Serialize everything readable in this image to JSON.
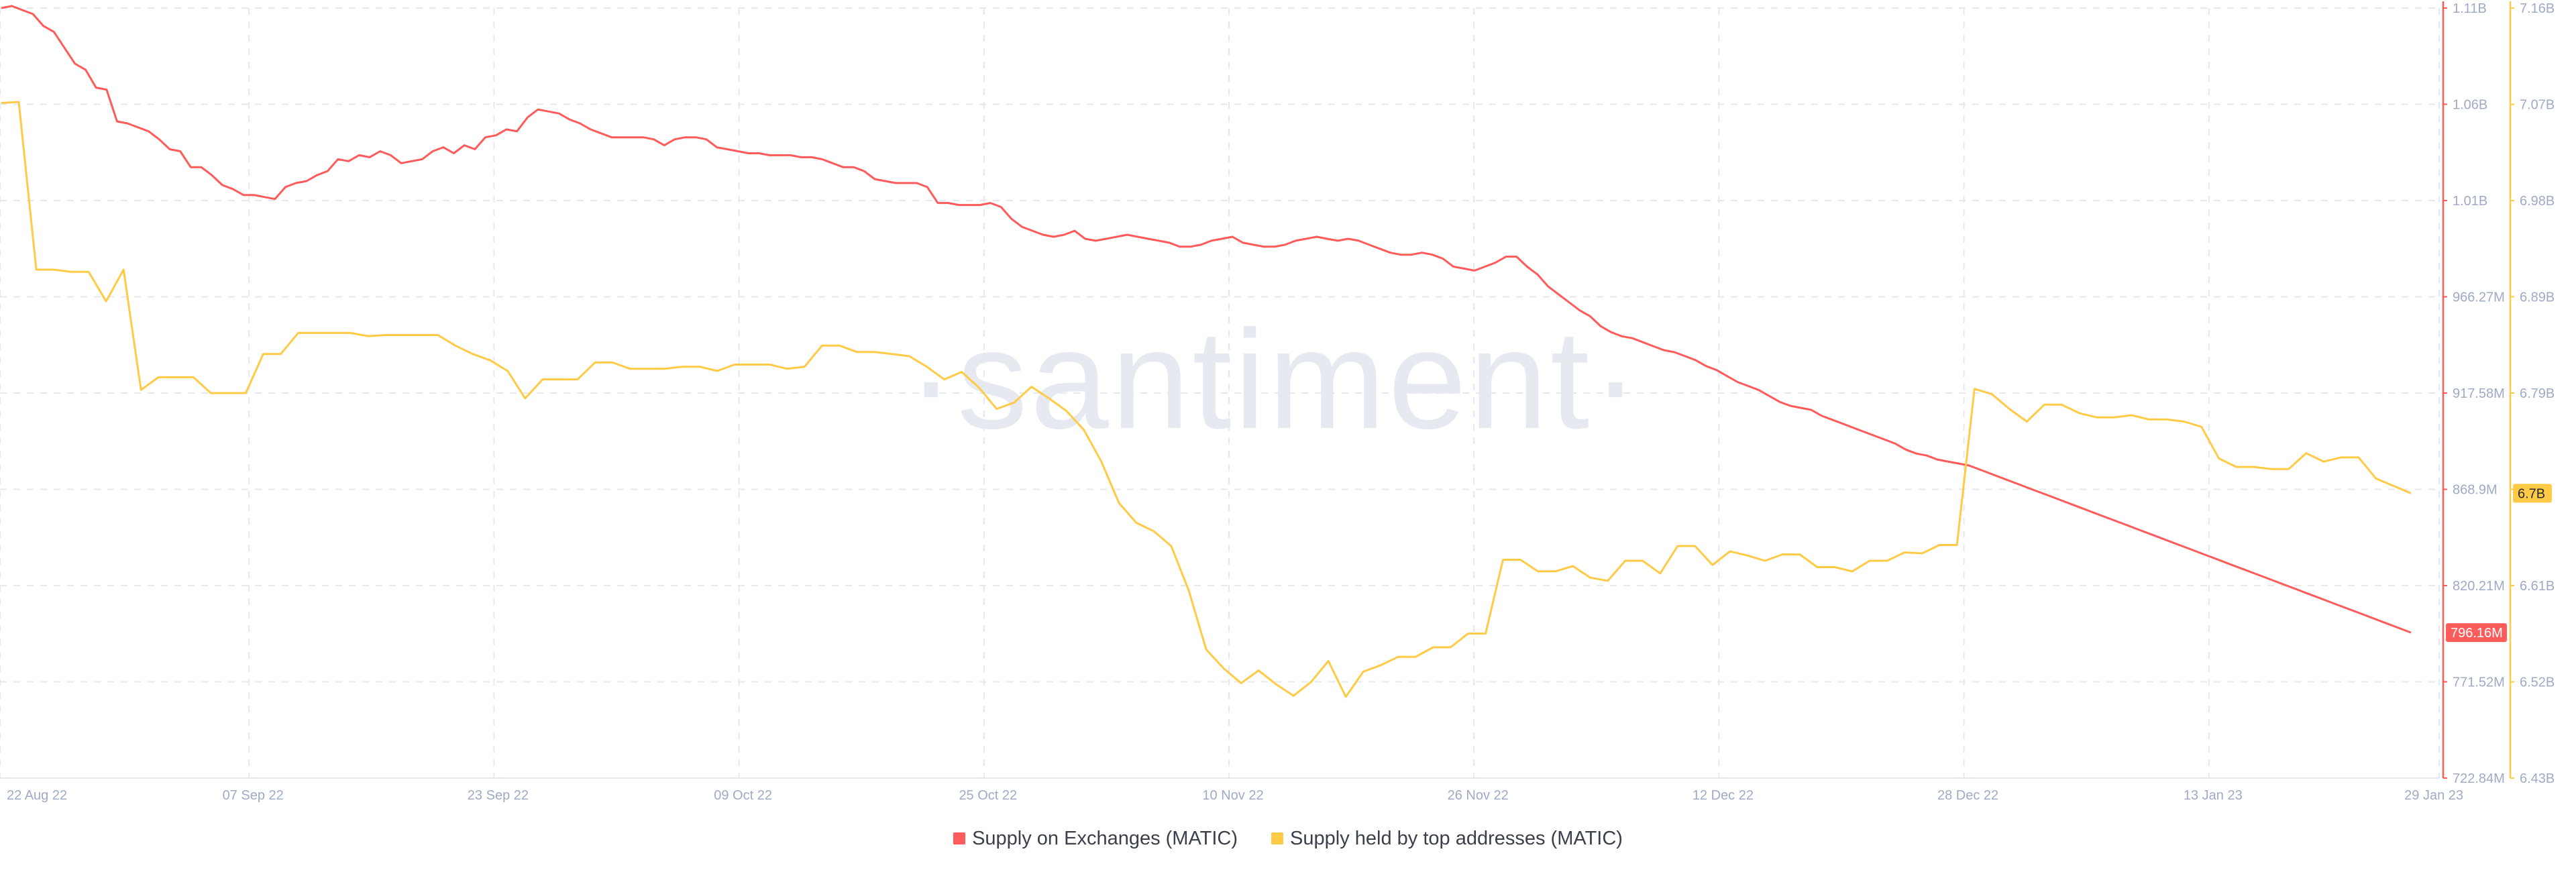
{
  "watermark": "·santiment·",
  "colors": {
    "exchanges": "#ff5b5b",
    "top_addresses": "#ffcb47",
    "grid": "#e6e8ef",
    "axis_text": "#9faac4",
    "watermark": "#e7e9f1"
  },
  "chart_data": {
    "type": "line",
    "x_ticks": [
      "22 Aug 22",
      "07 Sep 22",
      "23 Sep 22",
      "09 Oct 22",
      "25 Oct 22",
      "10 Nov 22",
      "26 Nov 22",
      "12 Dec 22",
      "28 Dec 22",
      "13 Jan 23",
      "29 Jan 23"
    ],
    "x_range": [
      "2022-08-22",
      "2023-01-29"
    ],
    "grid": true,
    "legend_position": "bottom-center",
    "y_axes": [
      {
        "id": "exchanges",
        "ticks": [
          "1.11B",
          "1.06B",
          "1.01B",
          "966.27M",
          "917.58M",
          "868.9M",
          "820.21M",
          "771.52M",
          "722.84M"
        ],
        "range": [
          722840000,
          1110000000
        ],
        "unit": "M"
      },
      {
        "id": "top_addresses",
        "ticks": [
          "7.16B",
          "7.07B",
          "6.98B",
          "6.89B",
          "6.79B",
          "6.7B",
          "6.61B",
          "6.52B",
          "6.43B"
        ],
        "range": [
          6430000000,
          7160000000
        ],
        "unit": "B"
      }
    ],
    "series": [
      {
        "name": "Supply on Exchanges (MATIC)",
        "axis": "exchanges",
        "current_label": "796.16M",
        "color": "#ff5b5b",
        "values": [
          1110,
          1111,
          1109,
          1107,
          1101,
          1098,
          1090,
          1082,
          1079,
          1070,
          1069,
          1053,
          1052,
          1050,
          1048,
          1044,
          1039,
          1038,
          1030,
          1030,
          1026,
          1021,
          1019,
          1016,
          1016,
          1015,
          1014,
          1020,
          1022,
          1023,
          1026,
          1028,
          1034,
          1033,
          1036,
          1035,
          1038,
          1036,
          1032,
          1033,
          1034,
          1038,
          1040,
          1037,
          1041,
          1039,
          1045,
          1046,
          1049,
          1048,
          1055,
          1059,
          1058,
          1057,
          1054,
          1052,
          1049,
          1047,
          1045,
          1045,
          1045,
          1045,
          1044,
          1041,
          1044,
          1045,
          1045,
          1044,
          1040,
          1039,
          1038,
          1037,
          1037,
          1036,
          1036,
          1036,
          1035,
          1035,
          1034,
          1032,
          1030,
          1030,
          1028,
          1024,
          1023,
          1022,
          1022,
          1022,
          1020,
          1012,
          1012,
          1011,
          1011,
          1011,
          1012,
          1010,
          1004,
          1000,
          998,
          996,
          995,
          996,
          998,
          994,
          993,
          994,
          995,
          996,
          995,
          994,
          993,
          992,
          990,
          990,
          991,
          993,
          994,
          995,
          992,
          991,
          990,
          990,
          991,
          993,
          994,
          995,
          994,
          993,
          994,
          993,
          991,
          989,
          987,
          986,
          986,
          987,
          986,
          984,
          980,
          979,
          978,
          980,
          982,
          985,
          985,
          980,
          976,
          970,
          966,
          962,
          958,
          955,
          950,
          947,
          945,
          944,
          942,
          940,
          938,
          937,
          935,
          933,
          930,
          928,
          925,
          922,
          920,
          918,
          915,
          912,
          910,
          909,
          908,
          905,
          903,
          901,
          899,
          897,
          895,
          893,
          891,
          888,
          886,
          885,
          883,
          882,
          881,
          880,
          878,
          876,
          874,
          872,
          870,
          868,
          866,
          864,
          862,
          860,
          858,
          856,
          854,
          852,
          850,
          848,
          846,
          844,
          842,
          840,
          838,
          836,
          834,
          832,
          830,
          828,
          826,
          824,
          822,
          820,
          818,
          816,
          814,
          812,
          810,
          808,
          806,
          804,
          802,
          800,
          798,
          796
        ]
      },
      {
        "name": "Supply held by top addresses (MATIC)",
        "axis": "top_addresses",
        "current_label": "6.7B",
        "color": "#ffcb47",
        "values": [
          7070,
          7071,
          6912,
          6912,
          6910,
          6910,
          6882,
          6912,
          6798,
          6810,
          6810,
          6810,
          6795,
          6795,
          6795,
          6832,
          6832,
          6852,
          6852,
          6852,
          6852,
          6849,
          6850,
          6850,
          6850,
          6850,
          6840,
          6832,
          6826,
          6816,
          6790,
          6808,
          6808,
          6808,
          6824,
          6824,
          6818,
          6818,
          6818,
          6820,
          6820,
          6816,
          6822,
          6822,
          6822,
          6818,
          6820,
          6840,
          6840,
          6834,
          6834,
          6832,
          6830,
          6820,
          6808,
          6815,
          6800,
          6780,
          6786,
          6801,
          6790,
          6778,
          6760,
          6730,
          6691,
          6672,
          6664,
          6650,
          6608,
          6552,
          6534,
          6520,
          6532,
          6519,
          6508,
          6521,
          6541,
          6507,
          6531,
          6537,
          6545,
          6545,
          6554,
          6554,
          6567,
          6567,
          6637,
          6637,
          6626,
          6626,
          6631,
          6620,
          6617,
          6636,
          6636,
          6624,
          6650,
          6650,
          6632,
          6645,
          6641,
          6636,
          6642,
          6642,
          6630,
          6630,
          6626,
          6636,
          6636,
          6644,
          6643,
          6651,
          6651,
          6799,
          6794,
          6780,
          6768,
          6784,
          6784,
          6776,
          6772,
          6772,
          6774,
          6770,
          6770,
          6768,
          6763,
          6733,
          6725,
          6725,
          6723,
          6723,
          6738,
          6730,
          6734,
          6734,
          6714,
          6707,
          6700
        ]
      }
    ]
  }
}
